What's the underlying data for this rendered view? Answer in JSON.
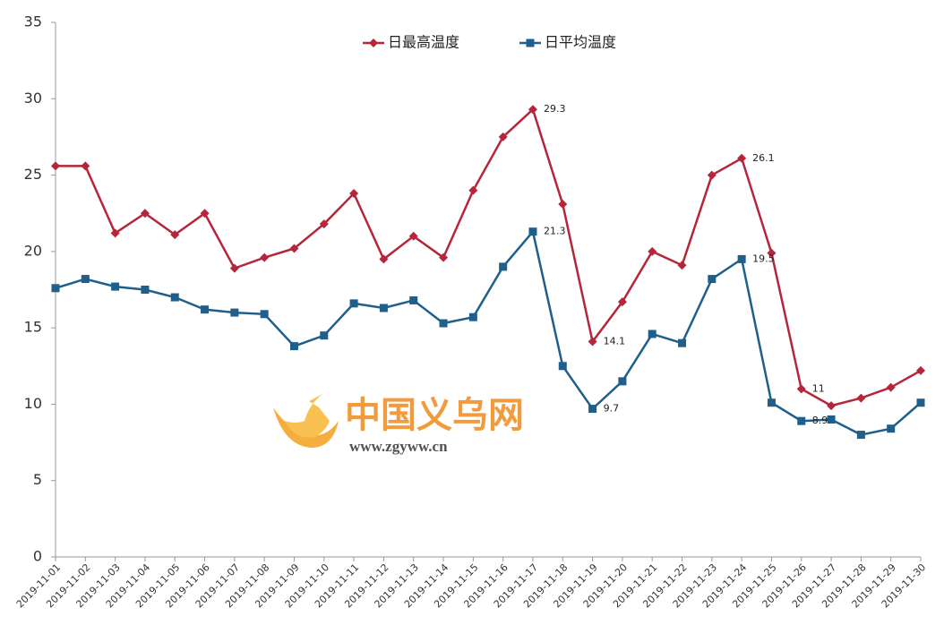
{
  "chart_data": {
    "type": "line",
    "categories": [
      "2019-11-01",
      "2019-11-02",
      "2019-11-03",
      "2019-11-04",
      "2019-11-05",
      "2019-11-06",
      "2019-11-07",
      "2019-11-08",
      "2019-11-09",
      "2019-11-10",
      "2019-11-11",
      "2019-11-12",
      "2019-11-13",
      "2019-11-14",
      "2019-11-15",
      "2019-11-16",
      "2019-11-17",
      "2019-11-18",
      "2019-11-19",
      "2019-11-20",
      "2019-11-21",
      "2019-11-22",
      "2019-11-23",
      "2019-11-24",
      "2019-11-25",
      "2019-11-26",
      "2019-11-27",
      "2019-11-28",
      "2019-11-29",
      "2019-11-30"
    ],
    "series": [
      {
        "name": "日最高温度",
        "color": "#b5263a",
        "marker": "diamond",
        "values": [
          25.6,
          25.6,
          21.2,
          22.5,
          21.1,
          22.5,
          18.9,
          19.6,
          20.2,
          21.8,
          23.8,
          19.5,
          21.0,
          19.6,
          24.0,
          27.5,
          29.3,
          23.1,
          14.1,
          16.7,
          20.0,
          19.1,
          25.0,
          26.1,
          19.9,
          11,
          9.9,
          10.4,
          11.1,
          12.2
        ],
        "data_labels": [
          16,
          18,
          23,
          25
        ]
      },
      {
        "name": "日平均温度",
        "color": "#1f5f8b",
        "marker": "square",
        "values": [
          17.6,
          18.2,
          17.7,
          17.5,
          17.0,
          16.2,
          16.0,
          15.9,
          13.8,
          14.5,
          16.6,
          16.3,
          16.8,
          15.3,
          15.7,
          19.0,
          21.3,
          12.5,
          9.7,
          11.5,
          14.6,
          14.0,
          18.2,
          19.5,
          10.1,
          8.9,
          9.0,
          8.0,
          8.4,
          10.1
        ],
        "data_labels": [
          16,
          18,
          23,
          25
        ]
      }
    ],
    "ylim": [
      0,
      35
    ],
    "yticks": [
      0,
      5,
      10,
      15,
      20,
      25,
      30,
      35
    ],
    "grid": false,
    "legend": "top"
  },
  "watermark": {
    "title": "中国义乌网",
    "url": "www.zgyww.cn"
  }
}
